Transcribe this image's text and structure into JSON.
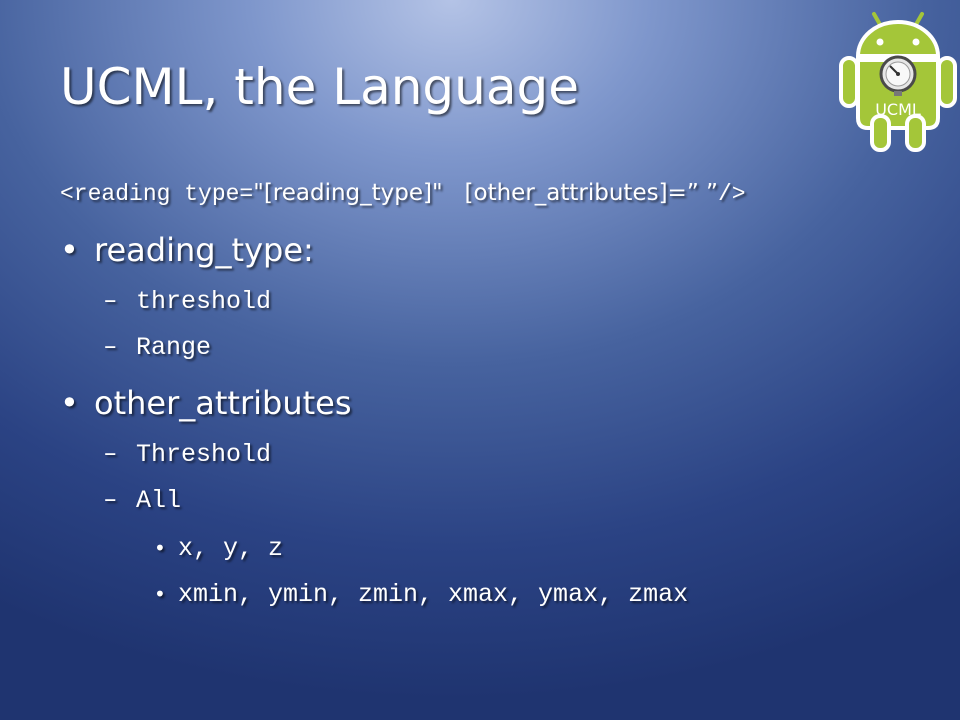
{
  "slide": {
    "title": "UCML, the Language",
    "syntax": {
      "tag_open": "<reading type=",
      "type_value": "\"[reading_type]\"",
      "attrs": "[other_attributes]=” ”",
      "tag_close": "/>"
    },
    "bullets": [
      {
        "label": "reading_type:",
        "items": [
          "threshold",
          "Range"
        ]
      },
      {
        "label": "other_attributes",
        "items": [
          "Threshold",
          "All"
        ],
        "sub_items": [
          "x, y, z",
          "xmin, ymin, zmin, xmax, ymax, zmax"
        ]
      }
    ],
    "logo": {
      "text": "UCML",
      "icon": "android-gauge-icon",
      "color": "#a4c639"
    }
  }
}
